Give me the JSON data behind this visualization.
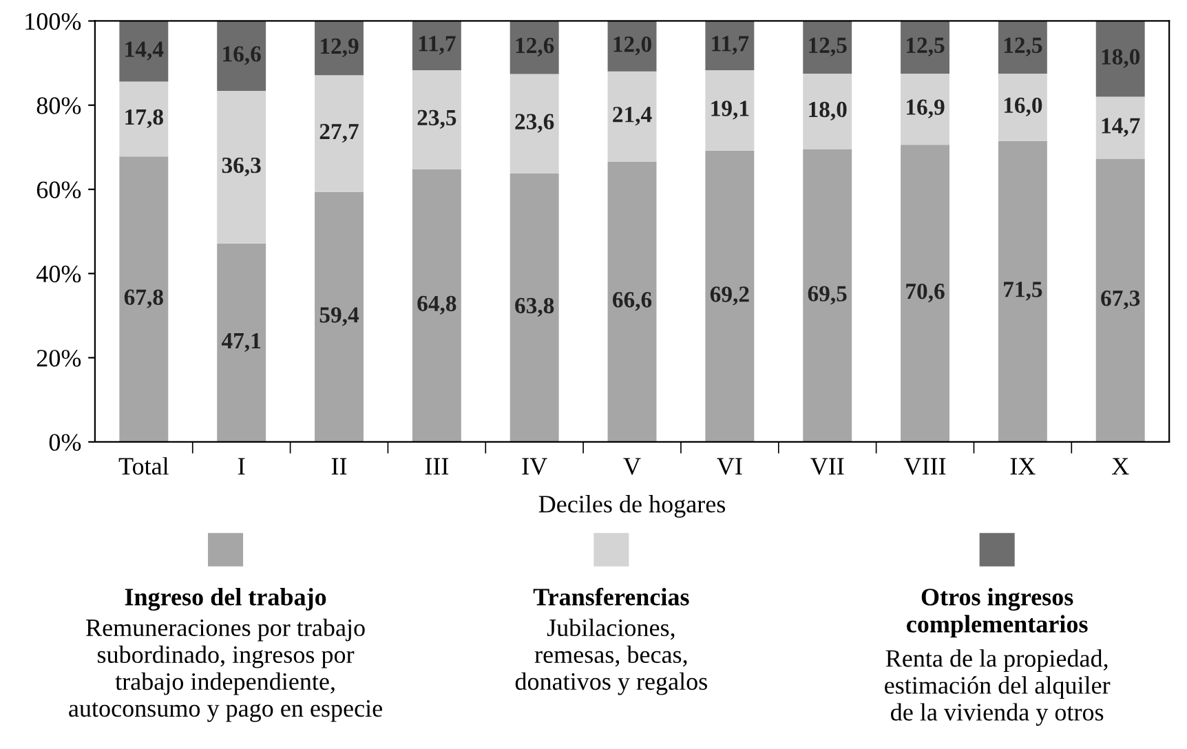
{
  "chart_data": {
    "type": "bar",
    "stacked": true,
    "xlabel": "Deciles de hogares",
    "categories": [
      "Total",
      "I",
      "II",
      "III",
      "IV",
      "V",
      "VI",
      "VII",
      "VIII",
      "IX",
      "X"
    ],
    "series": [
      {
        "name": "Ingreso del trabajo",
        "color": "#a6a6a6",
        "values": [
          67.8,
          47.1,
          59.4,
          64.8,
          63.8,
          66.6,
          69.2,
          69.5,
          70.6,
          71.5,
          67.3
        ],
        "value_labels": [
          "67,8",
          "47,1",
          "59,4",
          "64,8",
          "63,8",
          "66,6",
          "69,2",
          "69,5",
          "70,6",
          "71,5",
          "67,3"
        ]
      },
      {
        "name": "Transferencias",
        "color": "#d4d4d4",
        "values": [
          17.8,
          36.3,
          27.7,
          23.5,
          23.6,
          21.4,
          19.1,
          18.0,
          16.9,
          16.0,
          14.7
        ],
        "value_labels": [
          "17,8",
          "36,3",
          "27,7",
          "23,5",
          "23,6",
          "21,4",
          "19,1",
          "18,0",
          "16,9",
          "16,0",
          "14,7"
        ]
      },
      {
        "name": "Otros ingresos\ncomplementarios",
        "color": "#6d6d6d",
        "values": [
          14.4,
          16.6,
          12.9,
          11.7,
          12.6,
          12.0,
          11.7,
          12.5,
          12.5,
          12.5,
          18.0
        ],
        "value_labels": [
          "14,4",
          "16,6",
          "12,9",
          "11,7",
          "12,6",
          "12,0",
          "11,7",
          "12,5",
          "12,5",
          "12,5",
          "18,0"
        ]
      }
    ],
    "ylim": [
      0,
      100
    ],
    "yticks": [
      {
        "value": 0,
        "label": "0%"
      },
      {
        "value": 20,
        "label": "20%"
      },
      {
        "value": 40,
        "label": "40%"
      },
      {
        "value": 60,
        "label": "60%"
      },
      {
        "value": 80,
        "label": "80%"
      },
      {
        "value": 100,
        "label": "100%"
      }
    ],
    "grid": false,
    "legend": "bottom",
    "annotations": [
      "Remuneraciones por trabajo\nsubordinado, ingresos por\ntrabajo independiente,\nautoconsumo y pago en especie",
      "Jubilaciones,\nremesas, becas,\ndonativos y regalos",
      "Renta de la propiedad,\nestimación del alquiler\nde la vivienda y otros"
    ]
  }
}
